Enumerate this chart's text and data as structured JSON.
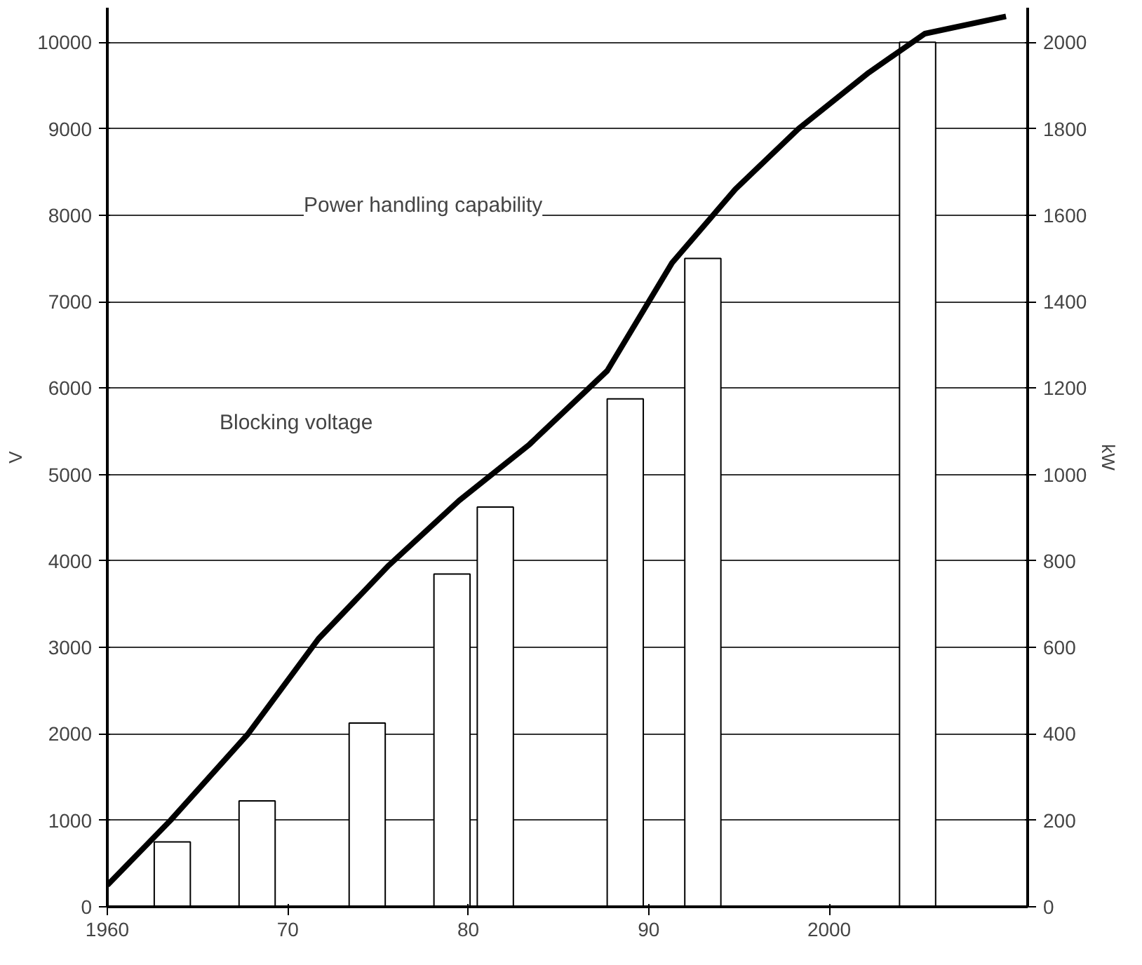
{
  "chart_data": {
    "type": "bar",
    "xlim": [
      1960,
      2011
    ],
    "xticks": [
      1960,
      {
        "value": 1970,
        "label": "70"
      },
      {
        "value": 1980,
        "label": "80"
      },
      {
        "value": 1990,
        "label": "90"
      },
      2000
    ],
    "ylim": [
      0,
      10400
    ],
    "yticks": [
      0,
      1000,
      2000,
      3000,
      4000,
      5000,
      6000,
      7000,
      8000,
      9000,
      10000
    ],
    "y2lim": [
      0,
      2080
    ],
    "y2ticks": [
      0,
      200,
      400,
      600,
      800,
      1000,
      1200,
      1400,
      1600,
      1800,
      2000
    ],
    "ylabel": "V",
    "y2label": "kW",
    "grid": "y",
    "series": [
      {
        "axis": "y2",
        "color": "#ffffff",
        "x": [
          1963.6,
          1968.3,
          1974.4,
          1979.1,
          1981.5,
          1988.7,
          1993.0,
          2004.9
        ],
        "values": [
          150,
          245,
          425,
          770,
          925,
          1175,
          1500,
          2000
        ]
      },
      {
        "type": "line",
        "color": "#000000",
        "x": [
          1960,
          1963.5,
          1967.8,
          1971.7,
          1975.6,
          1979.5,
          1983.4,
          1987.7,
          1991.3,
          1994.8,
          1998.3,
          2002.2,
          2005.3,
          2009.8
        ],
        "values": [
          250,
          1000,
          2000,
          3100,
          3950,
          4700,
          5350,
          6200,
          7450,
          8300,
          9000,
          9650,
          10100,
          10300
        ]
      }
    ],
    "annotations": [
      "Power handling capability",
      "Blocking voltage"
    ]
  }
}
